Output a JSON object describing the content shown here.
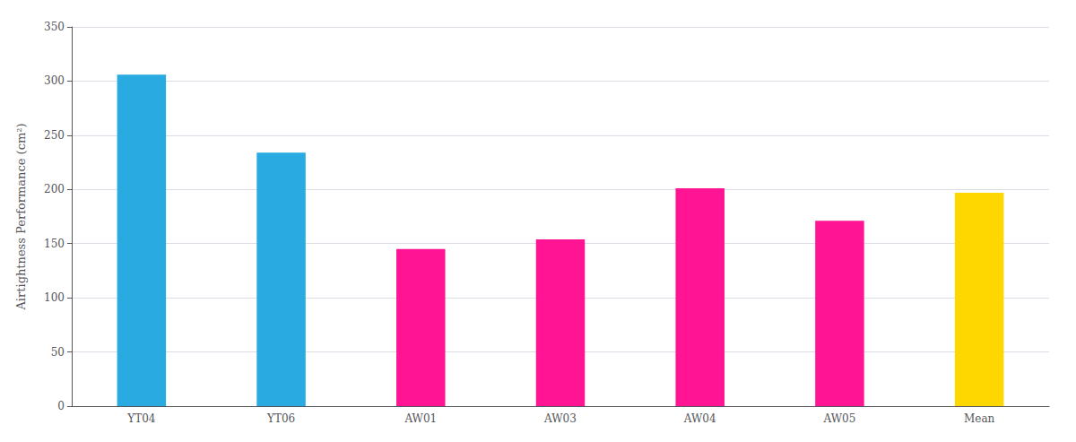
{
  "chart_data": {
    "type": "bar",
    "categories": [
      "YT04",
      "YT06",
      "AW01",
      "AW03",
      "AW04",
      "AW05",
      "Mean"
    ],
    "values": [
      306,
      234,
      145,
      154,
      201,
      171,
      197
    ],
    "colors": [
      "#29ABE2",
      "#29ABE2",
      "#FF1493",
      "#FF1493",
      "#FF1493",
      "#FF1493",
      "#FFD700"
    ],
    "ylabel": "Airtightness Performance (cm²)",
    "ylim": [
      0,
      350
    ],
    "yticks": [
      0,
      50,
      100,
      150,
      200,
      250,
      300,
      350
    ],
    "grid": true
  }
}
